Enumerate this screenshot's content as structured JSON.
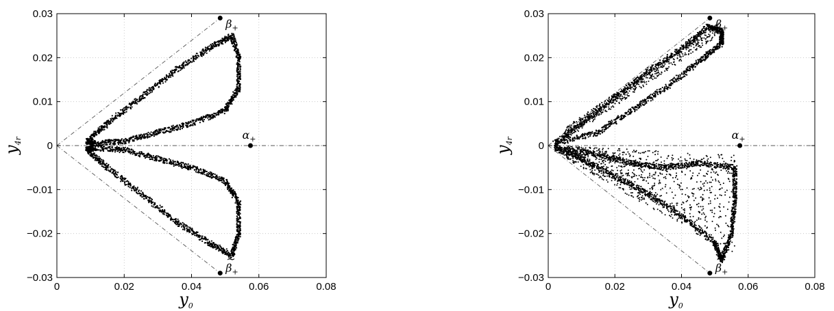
{
  "chart_data": [
    {
      "type": "scatter",
      "title": "",
      "xlabel": "y",
      "xlabel_sub": "0",
      "ylabel": "y",
      "ylabel_sub": "4r",
      "xlim": [
        0,
        0.08
      ],
      "ylim": [
        -0.03,
        0.03
      ],
      "xticks": [
        0,
        0.02,
        0.04,
        0.06,
        0.08
      ],
      "xtick_labels": [
        "0",
        "0.02",
        "0.04",
        "0.06",
        "0.08"
      ],
      "yticks": [
        0.03,
        0.02,
        0.01,
        0,
        -0.01,
        -0.02,
        -0.03
      ],
      "ytick_labels": [
        "0.03",
        "0.02",
        "0.01",
        "0",
        "−0.01",
        "−0.02",
        "−0.03"
      ],
      "grid": true,
      "guide_lines": [
        {
          "style": "dash-dot",
          "x": [
            0,
            0.0485
          ],
          "y": [
            0,
            0.029
          ]
        },
        {
          "style": "dash-dot",
          "x": [
            0,
            0.0485
          ],
          "y": [
            0,
            -0.029
          ]
        },
        {
          "style": "dash-dot",
          "x": [
            0,
            0.08
          ],
          "y": [
            0,
            0
          ]
        }
      ],
      "special_points": [
        {
          "label": "β",
          "sub": "+",
          "tilde": false,
          "x": 0.0485,
          "y": 0.029
        },
        {
          "label": "β",
          "sub": "+",
          "tilde": true,
          "x": 0.0485,
          "y": -0.029
        },
        {
          "label": "α",
          "sub": "+",
          "tilde": false,
          "x": 0.0575,
          "y": 0.0
        }
      ],
      "series": [
        {
          "pattern": "upper-lobe",
          "points": [
            [
              0.009,
              0.001
            ],
            [
              0.015,
              0.005
            ],
            [
              0.025,
              0.011
            ],
            [
              0.035,
              0.017
            ],
            [
              0.045,
              0.022
            ],
            [
              0.052,
              0.025
            ],
            [
              0.054,
              0.02
            ],
            [
              0.054,
              0.013
            ],
            [
              0.05,
              0.008
            ],
            [
              0.04,
              0.005
            ],
            [
              0.03,
              0.003
            ],
            [
              0.02,
              0.001
            ],
            [
              0.011,
              0.0005
            ]
          ]
        },
        {
          "pattern": "lower-lobe",
          "points": [
            [
              0.009,
              -0.001
            ],
            [
              0.015,
              -0.005
            ],
            [
              0.025,
              -0.011
            ],
            [
              0.035,
              -0.017
            ],
            [
              0.045,
              -0.022
            ],
            [
              0.052,
              -0.025
            ],
            [
              0.054,
              -0.02
            ],
            [
              0.054,
              -0.013
            ],
            [
              0.05,
              -0.008
            ],
            [
              0.04,
              -0.005
            ],
            [
              0.03,
              -0.003
            ],
            [
              0.02,
              -0.001
            ],
            [
              0.011,
              -0.0005
            ]
          ]
        }
      ]
    },
    {
      "type": "scatter",
      "title": "",
      "xlabel": "y",
      "xlabel_sub": "0",
      "ylabel": "y",
      "ylabel_sub": "4r",
      "xlim": [
        0,
        0.08
      ],
      "ylim": [
        -0.03,
        0.03
      ],
      "xticks": [
        0,
        0.02,
        0.04,
        0.06,
        0.08
      ],
      "xtick_labels": [
        "0",
        "0.02",
        "0.04",
        "0.06",
        "0.08"
      ],
      "yticks": [
        0.03,
        0.02,
        0.01,
        0,
        -0.01,
        -0.02,
        -0.03
      ],
      "ytick_labels": [
        "0.03",
        "0.02",
        "0.01",
        "0",
        "−0.01",
        "−0.02",
        "−0.03"
      ],
      "grid": true,
      "guide_lines": [
        {
          "style": "dash-dot",
          "x": [
            0,
            0.0485
          ],
          "y": [
            0,
            0.029
          ]
        },
        {
          "style": "dash-dot",
          "x": [
            0,
            0.0485
          ],
          "y": [
            0,
            -0.029
          ]
        },
        {
          "style": "dash-dot",
          "x": [
            0,
            0.08
          ],
          "y": [
            0,
            0
          ]
        }
      ],
      "special_points": [
        {
          "label": "β",
          "sub": "+",
          "tilde": false,
          "x": 0.0485,
          "y": 0.029
        },
        {
          "label": "β",
          "sub": "+",
          "tilde": true,
          "x": 0.0485,
          "y": -0.029
        },
        {
          "label": "α",
          "sub": "+",
          "tilde": false,
          "x": 0.0575,
          "y": 0.0
        }
      ],
      "series": [
        {
          "pattern": "upper-band",
          "points": [
            [
              0.002,
              0.0005
            ],
            [
              0.01,
              0.005
            ],
            [
              0.02,
              0.011
            ],
            [
              0.03,
              0.017
            ],
            [
              0.04,
              0.022
            ],
            [
              0.048,
              0.027
            ],
            [
              0.052,
              0.026
            ],
            [
              0.052,
              0.023
            ],
            [
              0.045,
              0.019
            ],
            [
              0.035,
              0.013
            ],
            [
              0.025,
              0.008
            ],
            [
              0.015,
              0.003
            ]
          ]
        },
        {
          "pattern": "lower-cloud",
          "points": [
            [
              0.002,
              -0.0005
            ],
            [
              0.01,
              -0.003
            ],
            [
              0.02,
              -0.007
            ],
            [
              0.03,
              -0.011
            ],
            [
              0.04,
              -0.016
            ],
            [
              0.05,
              -0.022
            ],
            [
              0.052,
              -0.026
            ],
            [
              0.055,
              -0.02
            ],
            [
              0.056,
              -0.012
            ],
            [
              0.056,
              -0.005
            ],
            [
              0.045,
              -0.004
            ],
            [
              0.035,
              -0.005
            ],
            [
              0.025,
              -0.004
            ],
            [
              0.015,
              -0.002
            ]
          ]
        }
      ]
    }
  ]
}
